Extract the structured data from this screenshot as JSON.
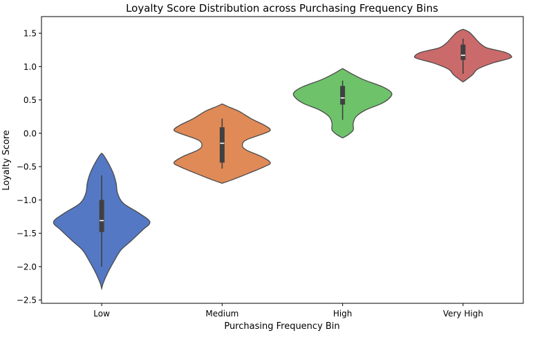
{
  "chart_data": {
    "type": "violin",
    "title": "Loyalty Score Distribution across Purchasing Frequency Bins",
    "xlabel": "Purchasing Frequency Bin",
    "ylabel": "Loyalty Score",
    "ylim": [
      -2.55,
      1.75
    ],
    "yticks": [
      -2.5,
      -2.0,
      -1.5,
      -1.0,
      -0.5,
      0.0,
      0.5,
      1.0,
      1.5
    ],
    "ytick_labels": [
      "−2.5",
      "−2.0",
      "−1.5",
      "−1.0",
      "−0.5",
      "0.0",
      "0.5",
      "1.0",
      "1.5"
    ],
    "categories": [
      "Low",
      "Medium",
      "High",
      "Very High"
    ],
    "grid": false,
    "series": [
      {
        "category": "Low",
        "color": "#5478c4",
        "min": -2.0,
        "q1": -1.48,
        "median": -1.31,
        "q3": -1.0,
        "max": -0.63,
        "profile": [
          [
            -2.33,
            0.0
          ],
          [
            -2.25,
            0.03
          ],
          [
            -2.1,
            0.12
          ],
          [
            -1.9,
            0.27
          ],
          [
            -1.75,
            0.4
          ],
          [
            -1.62,
            0.6
          ],
          [
            -1.45,
            0.85
          ],
          [
            -1.33,
            1.0
          ],
          [
            -1.2,
            0.78
          ],
          [
            -1.05,
            0.45
          ],
          [
            -0.9,
            0.33
          ],
          [
            -0.75,
            0.3
          ],
          [
            -0.6,
            0.24
          ],
          [
            -0.45,
            0.14
          ],
          [
            -0.33,
            0.04
          ],
          [
            -0.3,
            0.0
          ]
        ]
      },
      {
        "category": "Medium",
        "color": "#e08a58",
        "min": -0.53,
        "q1": -0.44,
        "median": -0.15,
        "q3": 0.09,
        "max": 0.22,
        "profile": [
          [
            -0.75,
            0.0
          ],
          [
            -0.7,
            0.2
          ],
          [
            -0.6,
            0.55
          ],
          [
            -0.5,
            0.88
          ],
          [
            -0.44,
            1.0
          ],
          [
            -0.35,
            0.82
          ],
          [
            -0.25,
            0.5
          ],
          [
            -0.18,
            0.42
          ],
          [
            -0.1,
            0.5
          ],
          [
            0.0,
            0.88
          ],
          [
            0.05,
            1.0
          ],
          [
            0.12,
            0.88
          ],
          [
            0.22,
            0.6
          ],
          [
            0.33,
            0.35
          ],
          [
            0.4,
            0.12
          ],
          [
            0.44,
            0.0
          ]
        ]
      },
      {
        "category": "High",
        "color": "#6ec26a",
        "min": 0.2,
        "q1": 0.43,
        "median": 0.53,
        "q3": 0.71,
        "max": 0.79,
        "profile": [
          [
            -0.07,
            0.0
          ],
          [
            -0.02,
            0.12
          ],
          [
            0.05,
            0.22
          ],
          [
            0.15,
            0.22
          ],
          [
            0.25,
            0.28
          ],
          [
            0.35,
            0.48
          ],
          [
            0.45,
            0.82
          ],
          [
            0.55,
            1.0
          ],
          [
            0.62,
            1.0
          ],
          [
            0.7,
            0.82
          ],
          [
            0.8,
            0.45
          ],
          [
            0.88,
            0.22
          ],
          [
            0.95,
            0.05
          ],
          [
            0.97,
            0.0
          ]
        ]
      },
      {
        "category": "Very High",
        "color": "#cb6a6a",
        "min": 0.89,
        "q1": 1.1,
        "median": 1.17,
        "q3": 1.33,
        "max": 1.42,
        "profile": [
          [
            0.77,
            0.0
          ],
          [
            0.8,
            0.06
          ],
          [
            0.88,
            0.2
          ],
          [
            0.96,
            0.3
          ],
          [
            1.05,
            0.6
          ],
          [
            1.12,
            0.95
          ],
          [
            1.16,
            1.0
          ],
          [
            1.22,
            0.85
          ],
          [
            1.28,
            0.5
          ],
          [
            1.35,
            0.35
          ],
          [
            1.45,
            0.22
          ],
          [
            1.52,
            0.12
          ],
          [
            1.56,
            0.0
          ]
        ]
      }
    ]
  }
}
